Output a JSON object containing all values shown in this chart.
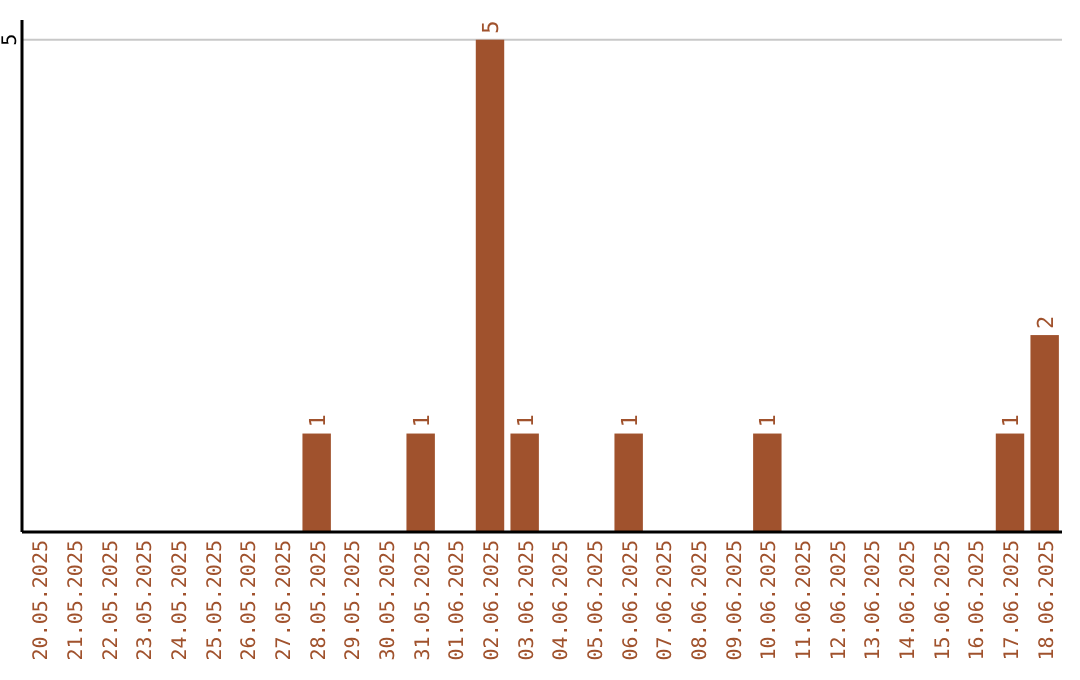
{
  "chart_data": {
    "type": "bar",
    "categories": [
      "20.05.2025",
      "21.05.2025",
      "22.05.2025",
      "23.05.2025",
      "24.05.2025",
      "25.05.2025",
      "26.05.2025",
      "27.05.2025",
      "28.05.2025",
      "29.05.2025",
      "30.05.2025",
      "31.05.2025",
      "01.06.2025",
      "02.06.2025",
      "03.06.2025",
      "04.06.2025",
      "05.06.2025",
      "06.06.2025",
      "07.06.2025",
      "08.06.2025",
      "09.06.2025",
      "10.06.2025",
      "11.06.2025",
      "12.06.2025",
      "13.06.2025",
      "14.06.2025",
      "15.06.2025",
      "16.06.2025",
      "17.06.2025",
      "18.06.2025"
    ],
    "values": [
      0,
      0,
      0,
      0,
      0,
      0,
      0,
      0,
      1,
      0,
      0,
      1,
      0,
      5,
      1,
      0,
      0,
      1,
      0,
      0,
      0,
      1,
      0,
      0,
      0,
      0,
      0,
      0,
      1,
      2
    ],
    "value_labels": [
      null,
      null,
      null,
      null,
      null,
      null,
      null,
      null,
      "1",
      null,
      null,
      "1",
      null,
      "5",
      "1",
      null,
      null,
      "1",
      null,
      null,
      null,
      "1",
      null,
      null,
      null,
      null,
      null,
      null,
      "1",
      "2"
    ],
    "color": "#a0522d",
    "ylim": [
      0,
      5.2
    ],
    "yticks": [
      5
    ],
    "grid": "y"
  }
}
